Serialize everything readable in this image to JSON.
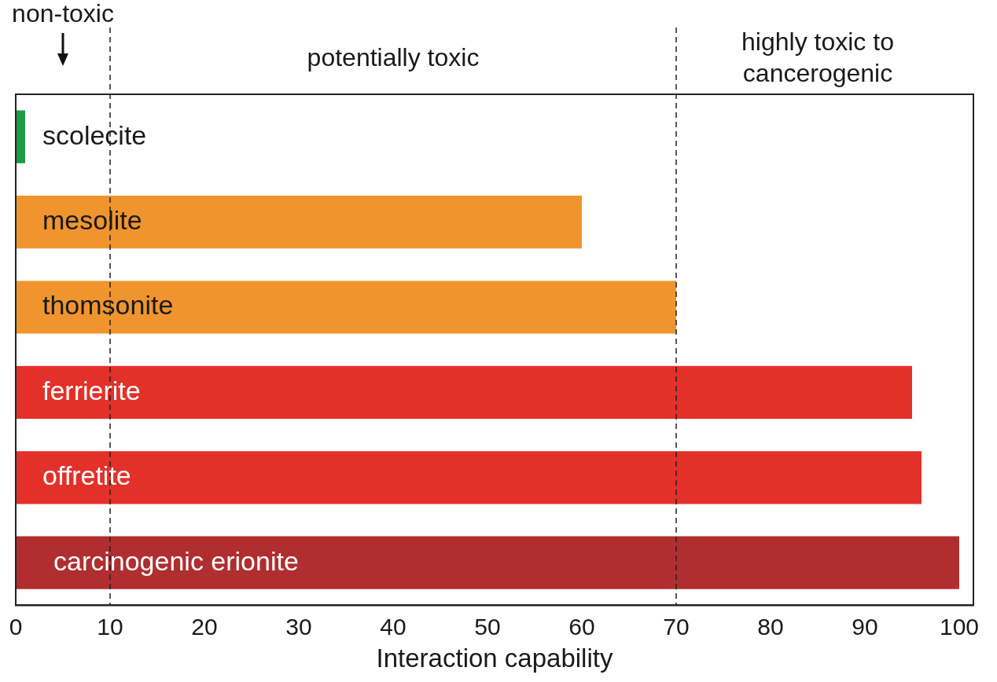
{
  "chart_data": {
    "type": "bar",
    "orientation": "horizontal",
    "xlabel": "Interaction capability",
    "categories": [
      "scolecite",
      "mesolite",
      "thomsonite",
      "ferrierite",
      "offretite",
      "carcinogenic erionite"
    ],
    "values": [
      1,
      60,
      70,
      95,
      96,
      100
    ],
    "colors": [
      "#1f9a4a",
      "#f0952e",
      "#f0952e",
      "#e3312a",
      "#e3312a",
      "#b02e30"
    ],
    "xlim": [
      0,
      101.5
    ],
    "xticks": [
      0,
      10,
      20,
      30,
      40,
      50,
      60,
      70,
      80,
      90,
      100
    ],
    "tick_labels": "x",
    "grid": false,
    "legend": false,
    "ref_lines": [
      {
        "axis": "x",
        "value": 10,
        "line_style": "dashed"
      },
      {
        "axis": "x",
        "value": 70,
        "line_style": "dashed"
      }
    ],
    "annotations": [
      "non-toxic",
      "potentially toxic",
      "highly toxic to cancerogenic"
    ]
  }
}
